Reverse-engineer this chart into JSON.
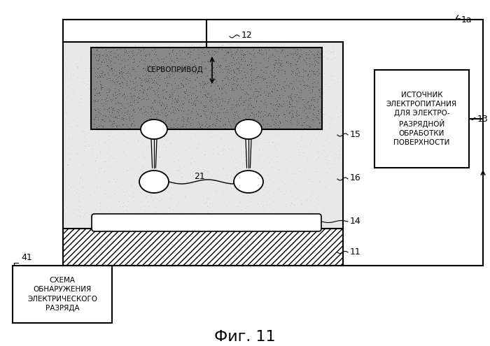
{
  "label_1a": "1a",
  "label_12": "12",
  "label_13": "13",
  "label_11": "11",
  "label_14": "14",
  "label_15": "15",
  "label_16": "16",
  "label_21": "21",
  "label_41": "41",
  "servo_text": "СЕРВОПРИВОД",
  "power_text": "ИСТОЧНИК\nЭЛЕКТРОПИТАНИЯ\nДЛЯ ЭЛЕКТРО-\nРАЗРЯДНОЙ\nОБРАБОТКИ\nПОВЕРХНОСТИ",
  "detect_text": "СХЕМА\nОБНАРУЖЕНИЯ\nЭЛЕКТРИЧЕСКОГО\nРАЗРЯДА",
  "fig_caption": "Фиг. 11",
  "bg_color": "#ffffff"
}
